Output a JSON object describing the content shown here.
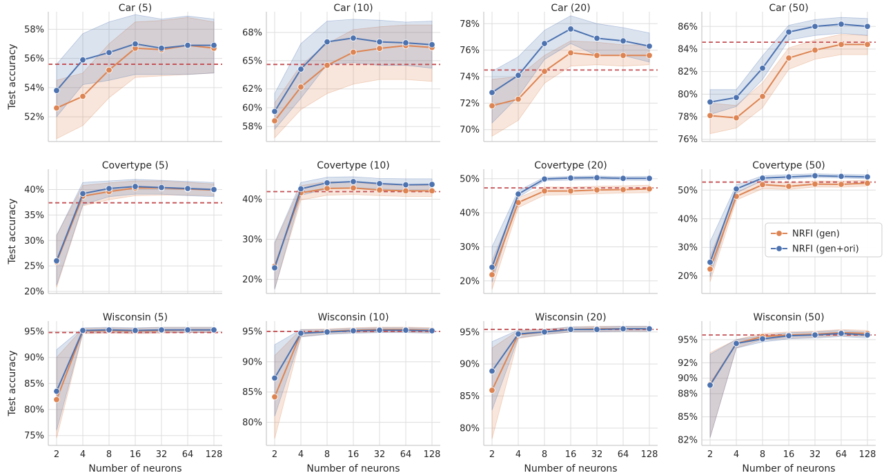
{
  "chart_data": {
    "type": "line",
    "x_categories": [
      "2",
      "4",
      "8",
      "16",
      "32",
      "64",
      "128"
    ],
    "xlabel": "Number of neurons",
    "ylabel": "Test accuracy",
    "grid": true,
    "legend": {
      "placement": "right of Covertype (50)",
      "entries": [
        "NRFI (gen)",
        "NRFI (gen+ori)"
      ]
    },
    "colors": {
      "gen": "#dd8452",
      "gen_ori": "#4c72b0",
      "baseline": "#c44e52"
    },
    "panels": [
      {
        "title": "Car (5)",
        "ylim": [
          50.3,
          59.2
        ],
        "yticks": [
          52,
          54,
          56,
          58
        ],
        "baseline": 55.6,
        "series": [
          {
            "name": "NRFI (gen)",
            "values": [
              52.6,
              53.4,
              55.2,
              56.7,
              56.6,
              56.9,
              56.7
            ],
            "lower": [
              50.5,
              51.4,
              53.3,
              54.7,
              54.8,
              54.9,
              55.0
            ],
            "upper": [
              54.5,
              55.0,
              57.0,
              58.5,
              58.6,
              58.8,
              58.5
            ]
          },
          {
            "name": "NRFI (gen+ori)",
            "values": [
              53.8,
              55.9,
              56.4,
              57.0,
              56.7,
              56.9,
              56.9
            ],
            "lower": [
              52.0,
              54.2,
              54.5,
              54.9,
              54.9,
              54.9,
              55.0
            ],
            "upper": [
              55.6,
              57.7,
              58.5,
              59.0,
              58.7,
              58.9,
              58.7
            ]
          }
        ]
      },
      {
        "title": "Car (10)",
        "ylim": [
          56.4,
          70.2
        ],
        "yticks": [
          58,
          60,
          62,
          65,
          68
        ],
        "baseline": 64.6,
        "series": [
          {
            "name": "NRFI (gen)",
            "values": [
              58.6,
              62.2,
              64.5,
              65.9,
              66.3,
              66.6,
              66.4
            ],
            "lower": [
              56.8,
              59.8,
              61.5,
              62.5,
              63.0,
              63.0,
              62.8
            ],
            "upper": [
              60.5,
              64.5,
              66.8,
              68.3,
              68.6,
              68.8,
              68.8
            ]
          },
          {
            "name": "NRFI (gen+ori)",
            "values": [
              59.6,
              64.1,
              67.0,
              67.4,
              67.0,
              66.9,
              66.7
            ],
            "lower": [
              57.7,
              61.0,
              64.6,
              64.8,
              64.5,
              64.5,
              64.2
            ],
            "upper": [
              61.5,
              66.8,
              69.2,
              69.4,
              69.3,
              69.1,
              69.2
            ]
          }
        ]
      },
      {
        "title": "Car (20)",
        "ylim": [
          69.1,
          78.9
        ],
        "yticks": [
          70,
          72,
          74,
          76,
          78
        ],
        "baseline": 74.5,
        "series": [
          {
            "name": "NRFI (gen)",
            "values": [
              71.8,
              72.3,
              74.4,
              75.8,
              75.6,
              75.6,
              75.6
            ],
            "lower": [
              69.5,
              70.7,
              73.5,
              74.8,
              74.9,
              74.8,
              74.9
            ],
            "upper": [
              73.8,
              74.0,
              75.6,
              76.7,
              76.6,
              76.4,
              76.4
            ]
          },
          {
            "name": "NRFI (gen+ori)",
            "values": [
              72.8,
              74.1,
              76.5,
              77.6,
              76.9,
              76.7,
              76.3
            ],
            "lower": [
              70.5,
              72.5,
              75.3,
              76.5,
              75.6,
              75.6,
              75.1
            ],
            "upper": [
              74.4,
              75.5,
              77.5,
              78.6,
              78.0,
              77.7,
              77.3
            ]
          }
        ]
      },
      {
        "title": "Car (50)",
        "ylim": [
          75.8,
          87.3
        ],
        "yticks": [
          76,
          78,
          80,
          82,
          84,
          86
        ],
        "baseline": 84.6,
        "series": [
          {
            "name": "NRFI (gen)",
            "values": [
              78.1,
              77.9,
              79.8,
              83.2,
              83.9,
              84.4,
              84.4
            ],
            "lower": [
              76.5,
              77.0,
              78.8,
              82.2,
              83.1,
              83.5,
              83.5
            ],
            "upper": [
              79.2,
              79.0,
              81.0,
              84.1,
              84.8,
              85.3,
              85.2
            ]
          },
          {
            "name": "NRFI (gen+ori)",
            "values": [
              79.3,
              79.7,
              82.3,
              85.5,
              86.0,
              86.2,
              86.0
            ],
            "lower": [
              78.2,
              78.9,
              81.3,
              84.8,
              85.2,
              85.4,
              85.2
            ],
            "upper": [
              80.4,
              80.4,
              83.4,
              86.1,
              86.6,
              86.8,
              86.7
            ]
          }
        ]
      },
      {
        "title": "Covertype (5)",
        "ylim": [
          19.6,
          44.0
        ],
        "yticks": [
          20,
          25,
          30,
          35,
          40
        ],
        "baseline": 37.4,
        "series": [
          {
            "name": "NRFI (gen)",
            "values": [
              25.8,
              38.7,
              39.6,
              40.3,
              40.3,
              40.1,
              39.9
            ],
            "lower": [
              20.8,
              36.8,
              38.0,
              38.8,
              38.9,
              38.9,
              38.8
            ],
            "upper": [
              31.0,
              40.8,
              41.3,
              41.7,
              41.7,
              41.4,
              41.1
            ]
          },
          {
            "name": "NRFI (gen+ori)",
            "values": [
              26.0,
              39.2,
              40.2,
              40.6,
              40.4,
              40.2,
              40.0
            ],
            "lower": [
              21.2,
              37.0,
              38.6,
              39.1,
              39.1,
              38.8,
              38.6
            ],
            "upper": [
              31.0,
              41.4,
              41.7,
              42.0,
              41.8,
              41.6,
              41.4
            ]
          }
        ]
      },
      {
        "title": "Covertype (10)",
        "ylim": [
          16.5,
          47.5
        ],
        "yticks": [
          20,
          30,
          40
        ],
        "baseline": 41.9,
        "series": [
          {
            "name": "NRFI (gen)",
            "values": [
              23.3,
              41.6,
              42.7,
              42.8,
              42.3,
              42.1,
              42.1
            ],
            "lower": [
              17.6,
              39.8,
              41.0,
              41.2,
              40.9,
              40.7,
              40.7
            ],
            "upper": [
              28.9,
              43.4,
              44.4,
              44.3,
              43.6,
              43.5,
              43.4
            ]
          },
          {
            "name": "NRFI (gen+ori)",
            "values": [
              22.9,
              42.6,
              44.1,
              44.4,
              43.9,
              43.6,
              43.7
            ],
            "lower": [
              17.5,
              41.0,
              42.6,
              42.9,
              42.6,
              42.3,
              42.4
            ],
            "upper": [
              29.2,
              44.2,
              45.5,
              45.6,
              45.2,
              45.1,
              45.1
            ]
          }
        ]
      },
      {
        "title": "Covertype (20)",
        "ylim": [
          16.3,
          52.8
        ],
        "yticks": [
          20,
          30,
          40,
          50
        ],
        "baseline": 47.3,
        "series": [
          {
            "name": "NRFI (gen)",
            "values": [
              21.8,
              43.0,
              46.4,
              46.4,
              46.7,
              46.8,
              47.0
            ],
            "lower": [
              17.5,
              41.5,
              45.2,
              45.3,
              45.6,
              45.8,
              45.9
            ],
            "upper": [
              26.0,
              44.4,
              47.6,
              47.5,
              47.8,
              47.9,
              48.1
            ]
          },
          {
            "name": "NRFI (gen+ori)",
            "values": [
              24.0,
              45.5,
              49.9,
              50.2,
              50.3,
              50.1,
              50.1
            ],
            "lower": [
              19.6,
              44.5,
              49.4,
              49.6,
              49.7,
              49.6,
              49.5
            ],
            "upper": [
              30.0,
              46.5,
              50.4,
              50.7,
              50.8,
              50.6,
              50.7
            ]
          }
        ]
      },
      {
        "title": "Covertype (50)",
        "ylim": [
          13.9,
          57.3
        ],
        "yticks": [
          20,
          30,
          40,
          50
        ],
        "baseline": 52.8,
        "series": [
          {
            "name": "NRFI (gen)",
            "values": [
              22.4,
              47.8,
              51.9,
              51.3,
              52.1,
              52.0,
              52.4
            ],
            "lower": [
              18.0,
              46.5,
              50.5,
              50.2,
              51.1,
              51.0,
              51.4
            ],
            "upper": [
              27.0,
              49.2,
              53.3,
              52.5,
              53.2,
              53.1,
              53.5
            ]
          },
          {
            "name": "NRFI (gen+ori)",
            "values": [
              24.8,
              50.4,
              54.2,
              54.6,
              55.0,
              54.8,
              54.6
            ],
            "lower": [
              19.6,
              49.0,
              53.4,
              53.9,
              54.4,
              54.2,
              54.0
            ],
            "upper": [
              32.0,
              51.8,
              55.0,
              55.4,
              55.7,
              55.5,
              55.3
            ]
          }
        ]
      },
      {
        "title": "Wisconsin (5)",
        "ylim": [
          73.1,
          97.0
        ],
        "yticks": [
          75,
          80,
          85,
          90,
          95
        ],
        "baseline": 94.8,
        "series": [
          {
            "name": "NRFI (gen)",
            "values": [
              81.9,
              95.1,
              95.2,
              95.1,
              95.2,
              95.3,
              95.3
            ],
            "lower": [
              74.5,
              94.6,
              94.7,
              94.6,
              94.7,
              94.8,
              94.8
            ],
            "upper": [
              90.0,
              95.6,
              95.7,
              95.6,
              95.8,
              95.8,
              95.8
            ]
          },
          {
            "name": "NRFI (gen+ori)",
            "values": [
              83.5,
              95.2,
              95.3,
              95.2,
              95.3,
              95.3,
              95.3
            ],
            "lower": [
              76.0,
              94.7,
              94.8,
              94.7,
              94.8,
              94.8,
              94.8
            ],
            "upper": [
              91.5,
              95.7,
              95.8,
              95.7,
              95.8,
              95.8,
              95.8
            ]
          }
        ]
      },
      {
        "title": "Wisconsin (10)",
        "ylim": [
          76.2,
          96.7
        ],
        "yticks": [
          80,
          85,
          90,
          95
        ],
        "baseline": 95.0,
        "series": [
          {
            "name": "NRFI (gen)",
            "values": [
              84.2,
              94.7,
              95.0,
              95.2,
              95.3,
              95.3,
              95.2
            ],
            "lower": [
              77.3,
              94.1,
              94.6,
              94.8,
              94.9,
              94.9,
              94.8
            ],
            "upper": [
              91.0,
              95.3,
              95.4,
              95.6,
              95.7,
              95.7,
              95.6
            ]
          },
          {
            "name": "NRFI (gen+ori)",
            "values": [
              87.3,
              94.7,
              94.9,
              95.1,
              95.2,
              95.2,
              95.1
            ],
            "lower": [
              81.0,
              94.1,
              94.5,
              94.7,
              94.8,
              94.8,
              94.7
            ],
            "upper": [
              92.8,
              95.3,
              95.3,
              95.5,
              95.6,
              95.6,
              95.5
            ]
          }
        ]
      },
      {
        "title": "Wisconsin (20)",
        "ylim": [
          77.3,
          96.7
        ],
        "yticks": [
          80,
          85,
          90,
          95
        ],
        "baseline": 95.4,
        "series": [
          {
            "name": "NRFI (gen)",
            "values": [
              85.9,
              94.6,
              95.0,
              95.4,
              95.5,
              95.5,
              95.5
            ],
            "lower": [
              78.3,
              94.0,
              94.6,
              95.0,
              95.1,
              95.1,
              95.1
            ],
            "upper": [
              92.5,
              95.2,
              95.4,
              95.8,
              95.9,
              95.9,
              95.9
            ]
          },
          {
            "name": "NRFI (gen+ori)",
            "values": [
              88.9,
              94.7,
              95.0,
              95.4,
              95.4,
              95.5,
              95.5
            ],
            "lower": [
              82.8,
              94.1,
              94.6,
              95.0,
              95.0,
              95.1,
              95.1
            ],
            "upper": [
              93.5,
              95.3,
              95.4,
              95.8,
              95.8,
              95.9,
              95.9
            ]
          }
        ]
      },
      {
        "title": "Wisconsin (50)",
        "ylim": [
          81.3,
          97.4
        ],
        "yticks": [
          82,
          85,
          88,
          90,
          92,
          95
        ],
        "baseline": 95.6,
        "series": [
          {
            "name": "NRFI (gen)",
            "values": [
              89.2,
              94.5,
              95.4,
              95.6,
              95.7,
              95.9,
              95.8
            ],
            "lower": [
              82.3,
              93.9,
              95.0,
              95.2,
              95.3,
              95.5,
              95.4
            ],
            "upper": [
              93.3,
              95.0,
              95.8,
              96.0,
              96.1,
              96.3,
              96.2
            ]
          },
          {
            "name": "NRFI (gen+ori)",
            "values": [
              89.1,
              94.5,
              95.1,
              95.5,
              95.6,
              95.8,
              95.6
            ],
            "lower": [
              82.3,
              93.9,
              94.7,
              95.1,
              95.2,
              95.4,
              95.2
            ],
            "upper": [
              93.1,
              95.0,
              95.5,
              95.9,
              96.0,
              96.2,
              96.0
            ]
          }
        ]
      }
    ]
  }
}
